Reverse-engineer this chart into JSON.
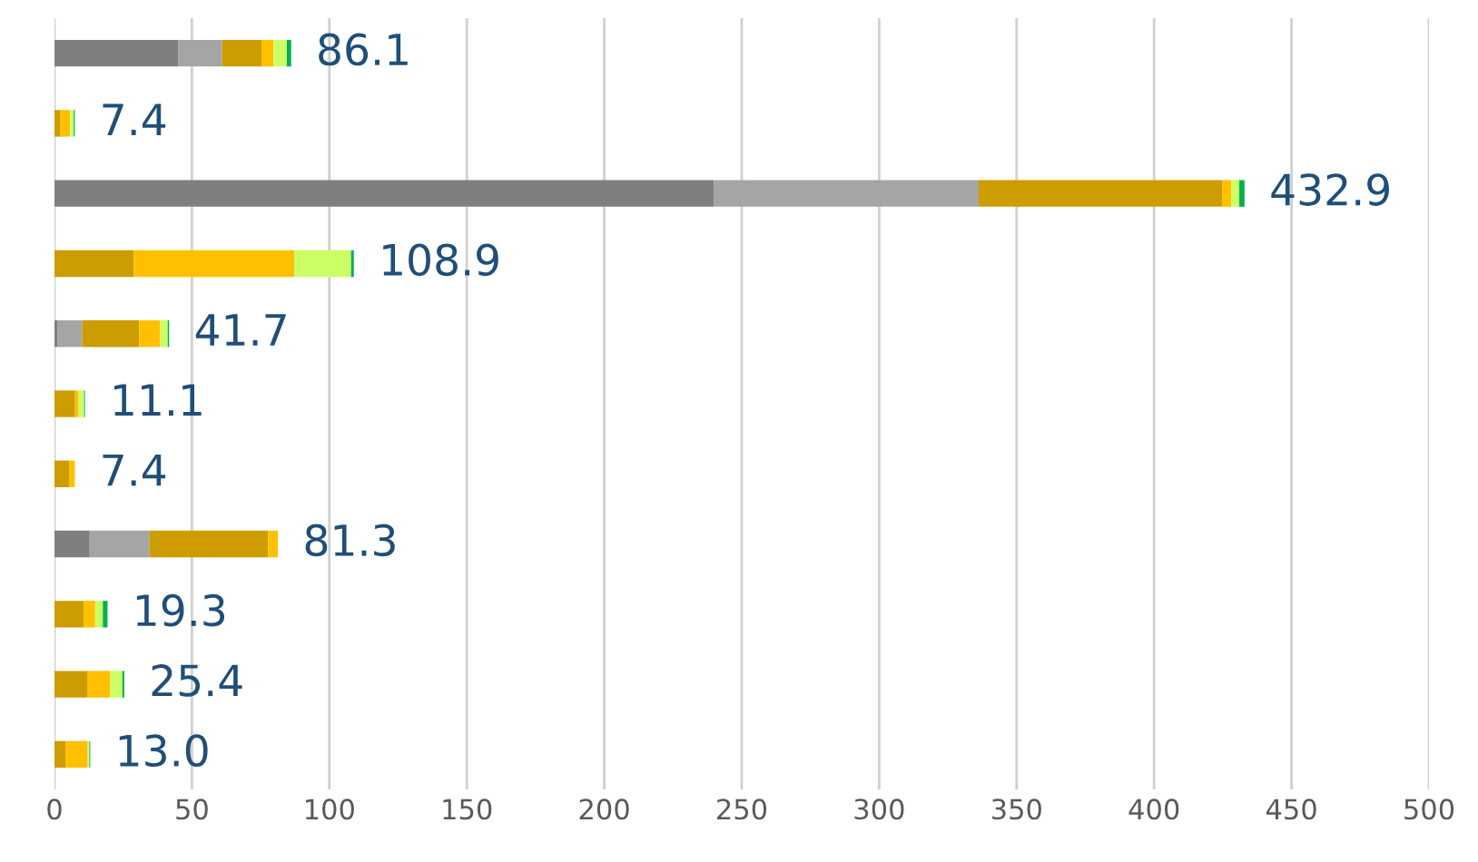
{
  "chart_data": {
    "type": "bar",
    "orientation": "horizontal",
    "stacked": true,
    "categories": [
      null,
      null,
      null,
      null,
      null,
      null,
      null,
      null,
      null,
      null,
      null
    ],
    "series": [
      {
        "color": "#7f7f7f",
        "values": [
          45.1,
          0,
          239.8,
          0,
          1.0,
          0,
          0,
          12.8,
          0,
          0,
          0
        ]
      },
      {
        "color": "#a5a5a5",
        "values": [
          15.9,
          0,
          96.4,
          0,
          9.1,
          0,
          0,
          21.8,
          0,
          0,
          0
        ]
      },
      {
        "color": "#cc9c00",
        "values": [
          14.3,
          2.2,
          88.5,
          28.8,
          20.7,
          7.5,
          5.3,
          43.1,
          10.6,
          12.1,
          4.0
        ]
      },
      {
        "color": "#ffc000",
        "values": [
          4.4,
          3.5,
          3.3,
          58.4,
          7.7,
          1.3,
          2.1,
          3.6,
          4.2,
          8.2,
          8.1
        ]
      },
      {
        "color": "#ccff66",
        "values": [
          4.8,
          1.3,
          3.0,
          20.7,
          2.7,
          2.0,
          0,
          0,
          2.8,
          4.4,
          0.6
        ]
      },
      {
        "color": "#00b050",
        "values": [
          1.6,
          0.4,
          1.9,
          1.0,
          0.5,
          0.3,
          0,
          0,
          1.7,
          0.7,
          0.3
        ]
      }
    ],
    "totals": [
      "86.1",
      "7.4",
      "432.9",
      "108.9",
      "41.7",
      "11.1",
      "7.4",
      "81.3",
      "19.3",
      "25.4",
      "13.0"
    ],
    "xlim": [
      0,
      500
    ],
    "xticks": [
      0,
      50,
      100,
      150,
      200,
      250,
      300,
      350,
      400,
      450,
      500
    ],
    "grid": "x",
    "legend": false
  }
}
